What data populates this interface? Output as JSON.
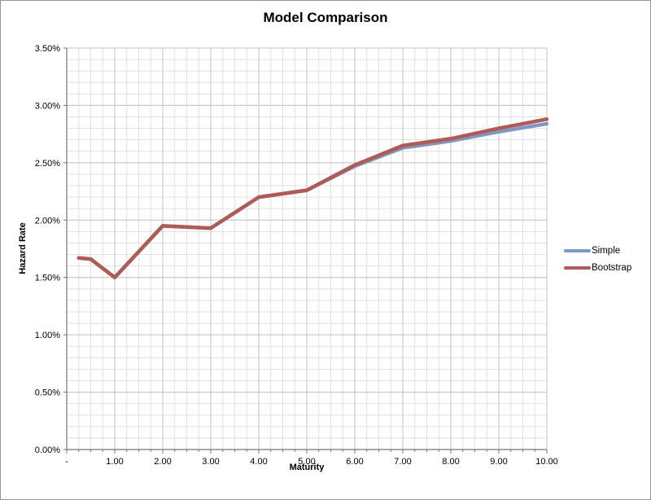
{
  "window": {
    "background": "#ffffff",
    "border_color": "#969696"
  },
  "chart_data": {
    "type": "line",
    "title": "Model Comparison",
    "xlabel": "Maturity",
    "ylabel": "Hazard Rate",
    "x": [
      0.25,
      0.5,
      1,
      2,
      3,
      4,
      5,
      6,
      7,
      8,
      9,
      10
    ],
    "series": [
      {
        "name": "Simple",
        "color": "#7E98C5",
        "values_pct": [
          1.67,
          1.66,
          1.5,
          1.95,
          1.93,
          2.2,
          2.26,
          2.47,
          2.63,
          2.69,
          2.77,
          2.84
        ]
      },
      {
        "name": "Bootstrap",
        "color": "#B05A55",
        "values_pct": [
          1.67,
          1.66,
          1.5,
          1.95,
          1.93,
          2.2,
          2.26,
          2.48,
          2.65,
          2.71,
          2.8,
          2.88
        ]
      }
    ],
    "x_axis": {
      "min": 0,
      "max": 10,
      "major_step": 1,
      "minor_step": 0.25,
      "tick_labels": [
        "-",
        "1.00",
        "2.00",
        "3.00",
        "4.00",
        "5.00",
        "6.00",
        "7.00",
        "8.00",
        "9.00",
        "10.00"
      ]
    },
    "y_axis": {
      "min": 0,
      "max": 3.5,
      "major_step": 0.5,
      "minor_step": 0.1,
      "tick_labels": [
        "0.00%",
        "0.50%",
        "1.00%",
        "1.50%",
        "2.00%",
        "2.50%",
        "3.00%",
        "3.50%"
      ]
    },
    "grid": {
      "on": true,
      "minor_color": "#e1e1e1",
      "major_color": "#c3c3c3",
      "axis_color": "#767676",
      "tick_color": "#767676",
      "label_color": "#000000"
    },
    "legend_position": "right",
    "line_width": 4.5
  }
}
